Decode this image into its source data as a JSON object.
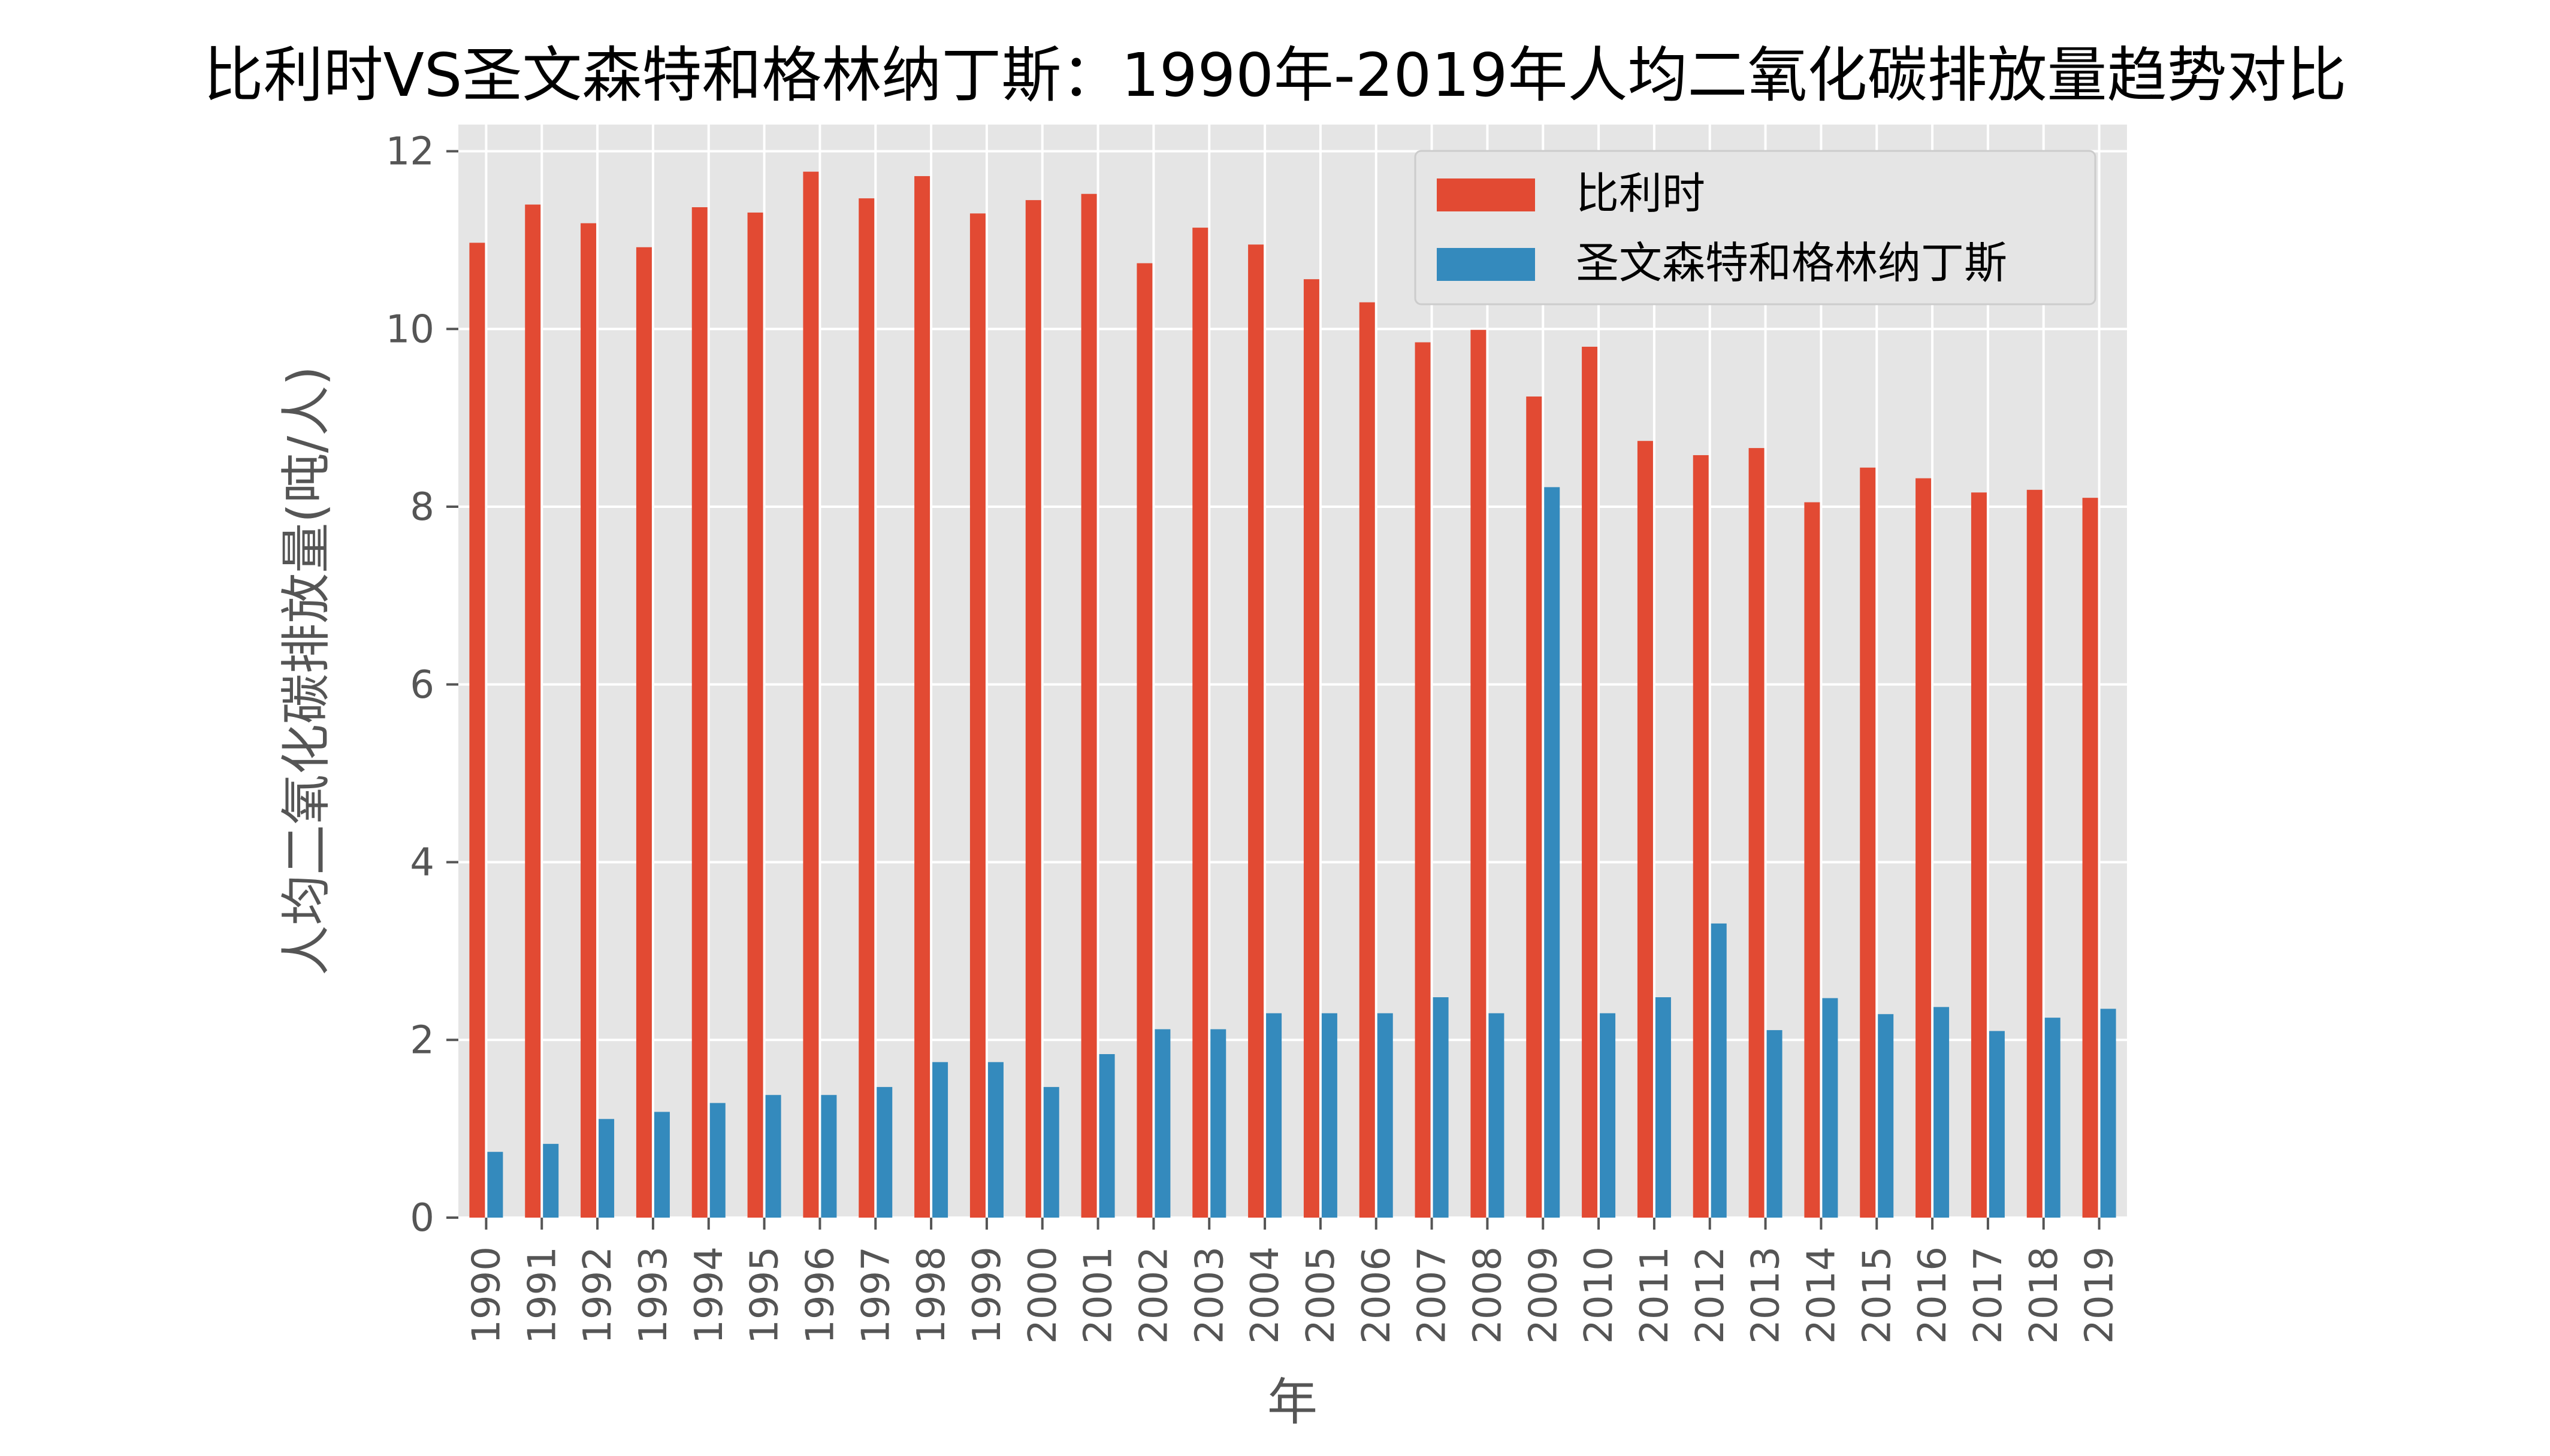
{
  "chart_data": {
    "type": "bar",
    "title": "比利时VS圣文森特和格林纳丁斯：1990年-2019年人均二氧化碳排放量趋势对比",
    "xlabel": "年",
    "ylabel": "人均二氧化碳排放量(吨/人)",
    "ylim": [
      0,
      12.3
    ],
    "yticks": [
      0,
      2,
      4,
      6,
      8,
      10,
      12
    ],
    "grid": true,
    "legend_position": "top-right",
    "categories": [
      "1990",
      "1991",
      "1992",
      "1993",
      "1994",
      "1995",
      "1996",
      "1997",
      "1998",
      "1999",
      "2000",
      "2001",
      "2002",
      "2003",
      "2004",
      "2005",
      "2006",
      "2007",
      "2008",
      "2009",
      "2010",
      "2011",
      "2012",
      "2013",
      "2014",
      "2015",
      "2016",
      "2017",
      "2018",
      "2019"
    ],
    "series": [
      {
        "name": "比利时",
        "color": "#E24A33",
        "values": [
          10.97,
          11.4,
          11.19,
          10.92,
          11.37,
          11.31,
          11.77,
          11.47,
          11.72,
          11.3,
          11.45,
          11.52,
          10.74,
          11.14,
          10.95,
          10.56,
          10.3,
          9.85,
          9.99,
          9.24,
          9.8,
          8.74,
          8.58,
          8.66,
          8.05,
          8.44,
          8.32,
          8.16,
          8.19,
          8.1
        ]
      },
      {
        "name": "圣文森特和格林纳丁斯",
        "color": "#348ABD",
        "values": [
          0.74,
          0.83,
          1.11,
          1.19,
          1.29,
          1.38,
          1.38,
          1.47,
          1.75,
          1.75,
          1.47,
          1.84,
          2.12,
          2.12,
          2.3,
          2.3,
          2.3,
          2.48,
          2.3,
          8.22,
          2.3,
          2.48,
          3.31,
          2.11,
          2.47,
          2.29,
          2.37,
          2.1,
          2.25,
          2.35
        ]
      }
    ]
  }
}
